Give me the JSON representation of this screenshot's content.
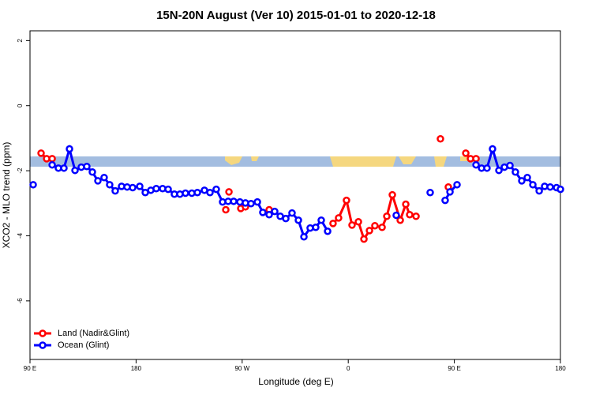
{
  "chart_data": {
    "type": "line",
    "title": "15N-20N August (Ver 10)   2015-01-01 to 2020-12-18",
    "xlabel": "Longitude (deg E)",
    "ylabel": "XCO2 - MLO trend (ppm)",
    "xlim": [
      90,
      540
    ],
    "ylim": [
      -7.8,
      2.3
    ],
    "xticks": [
      {
        "value": 90,
        "label": "90 E"
      },
      180,
      {
        "value": 270,
        "label": "90 W"
      },
      {
        "value": 360,
        "label": "0"
      },
      {
        "value": 450,
        "label": "90 E"
      },
      {
        "value": 540,
        "label": "180"
      }
    ],
    "yticks": [
      2,
      0,
      -2,
      -4,
      -6
    ],
    "legend": "bottom-left",
    "series": [
      {
        "name": "Land (Nadir&Glint)",
        "color": "#ff0000",
        "x": [
          99.4,
          104.1,
          108.8,
          180,
          256.1,
          257.5,
          258.8,
          264,
          268.8,
          272.8,
          283,
          292.9,
          320,
          347.1,
          351.8,
          358.5,
          363.2,
          368.6,
          373.3,
          378,
          382.6,
          388.7,
          392.7,
          397.4,
          404.1,
          408.8,
          412.1,
          417.5,
          428,
          438.2,
          441.5,
          444.9,
          452,
          459.7,
          463.7,
          468.4
        ],
        "values": [
          -1.46,
          -1.63,
          -1.63,
          null,
          -3.2,
          null,
          -2.65,
          null,
          -3.16,
          -3.11,
          null,
          -3.2,
          null,
          -3.62,
          -3.45,
          -2.91,
          -3.67,
          -3.57,
          -4.1,
          -3.84,
          -3.69,
          -3.74,
          -3.4,
          -2.74,
          -3.52,
          -3.03,
          -3.35,
          -3.4,
          null,
          -1.02,
          null,
          -2.5,
          null,
          -1.46,
          -1.63,
          -1.63
        ]
      },
      {
        "name": "Ocean (Glint)",
        "color": "#0000ff",
        "x": [
          92.7,
          100.7,
          108.8,
          114.1,
          118.8,
          123.5,
          128.2,
          133.5,
          138.2,
          142.9,
          147.6,
          152.9,
          157.6,
          162.3,
          167.7,
          172.4,
          177.1,
          183.1,
          187.8,
          192.5,
          197.1,
          202.5,
          207.2,
          212.5,
          217.2,
          221.9,
          227.3,
          232,
          238,
          242.7,
          248,
          253.4,
          258.1,
          262.8,
          268.1,
          272.8,
          277.5,
          282.9,
          287.5,
          292.9,
          297.6,
          302.3,
          307,
          312.3,
          317.7,
          322.4,
          327.7,
          332.4,
          337.1,
          342.5,
          371,
          400.7,
          415,
          429.5,
          436,
          442.2,
          446.3,
          452.3,
          460,
          468.4,
          473.1,
          477.7,
          482.4,
          487.8,
          492.5,
          497.2,
          501.8,
          507.2,
          511.9,
          516.6,
          522,
          526.6,
          531.3,
          536.7,
          540
        ],
        "values": [
          -2.43,
          null,
          -1.82,
          -1.92,
          -1.92,
          -1.33,
          -1.99,
          -1.89,
          -1.87,
          -2.04,
          -2.31,
          -2.21,
          -2.43,
          -2.62,
          -2.48,
          -2.5,
          -2.52,
          -2.48,
          -2.67,
          -2.6,
          -2.55,
          -2.55,
          -2.57,
          -2.72,
          -2.72,
          -2.69,
          -2.69,
          -2.67,
          -2.6,
          -2.67,
          -2.57,
          -2.96,
          -2.94,
          -2.94,
          -2.96,
          -2.99,
          -3.01,
          -2.96,
          -3.28,
          -3.35,
          -3.25,
          -3.4,
          -3.47,
          -3.3,
          -3.52,
          -4.03,
          -3.76,
          -3.74,
          -3.52,
          -3.86,
          null,
          -3.37,
          null,
          -2.67,
          null,
          -2.91,
          -2.65,
          -2.43,
          null,
          -1.82,
          -1.92,
          -1.92,
          -1.33,
          -1.99,
          -1.89,
          -1.84,
          -2.04,
          -2.31,
          -2.21,
          -2.43,
          -2.62,
          -2.48,
          -2.5,
          -2.52,
          -2.57
        ]
      }
    ]
  }
}
